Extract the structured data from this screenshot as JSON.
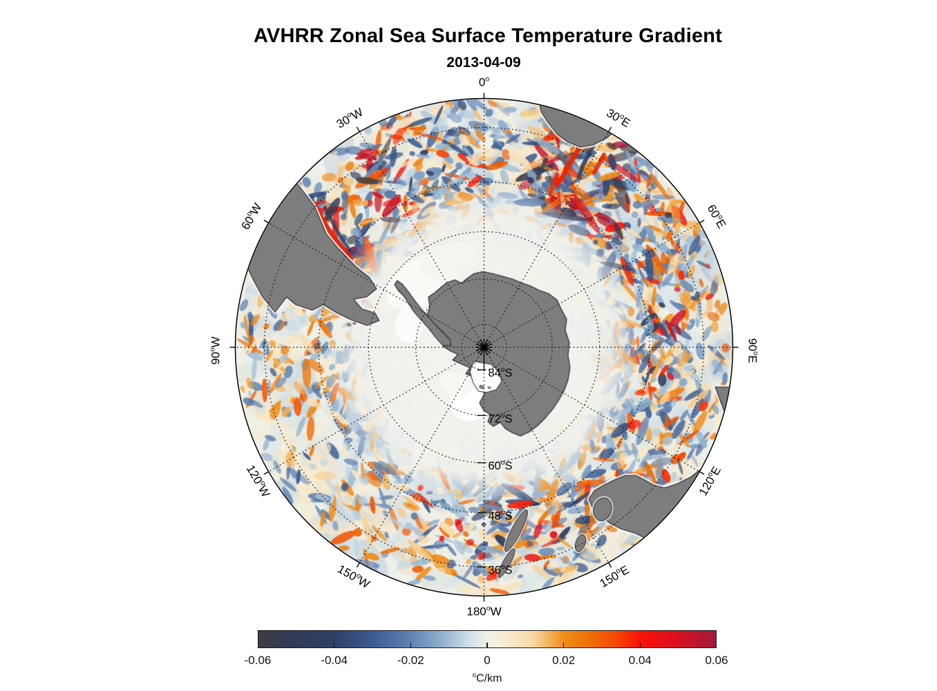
{
  "header": {
    "title": "AVHRR Zonal Sea Surface Temperature Gradient",
    "subtitle": "2013-04-09"
  },
  "chart_data": {
    "type": "heatmap",
    "projection": "south-polar-stereographic",
    "title": "AVHRR Zonal Sea Surface Temperature Gradient",
    "date": "2013-04-09",
    "variable": "zonal sea surface temperature gradient",
    "units": "°C/km",
    "colorbar": {
      "min": -0.06,
      "max": 0.06,
      "ticks": [
        -0.06,
        -0.04,
        -0.02,
        0,
        0.02,
        0.04,
        0.06
      ],
      "tick_labels": [
        "-0.06",
        "-0.04",
        "-0.02",
        "0",
        "0.02",
        "0.04",
        "0.06"
      ],
      "unit_sup": "o",
      "unit_text": "C/km"
    },
    "colormap": [
      {
        "pos": 0.0,
        "color": "#3c3c43"
      },
      {
        "pos": 0.06,
        "color": "#333a52"
      },
      {
        "pos": 0.167,
        "color": "#2d4068"
      },
      {
        "pos": 0.25,
        "color": "#3d5c90"
      },
      {
        "pos": 0.333,
        "color": "#5e82b2"
      },
      {
        "pos": 0.4,
        "color": "#8fb0cf"
      },
      {
        "pos": 0.46,
        "color": "#cfdfe8"
      },
      {
        "pos": 0.5,
        "color": "#eff1e8"
      },
      {
        "pos": 0.54,
        "color": "#f9ecd2"
      },
      {
        "pos": 0.6,
        "color": "#f8d9a6"
      },
      {
        "pos": 0.667,
        "color": "#f08f18"
      },
      {
        "pos": 0.72,
        "color": "#ec7204"
      },
      {
        "pos": 0.78,
        "color": "#f54a02"
      },
      {
        "pos": 0.833,
        "color": "#fb1405"
      },
      {
        "pos": 0.9,
        "color": "#e01019"
      },
      {
        "pos": 1.0,
        "color": "#a01a3c"
      }
    ],
    "graticule": {
      "lat_circles": [
        -36,
        -48,
        -60,
        -72,
        -84
      ],
      "lon_step_deg": 30,
      "boundary_lat": -30
    },
    "lat_labels": [
      {
        "value": "84",
        "sup": "o",
        "suffix": "S",
        "lat": -84
      },
      {
        "value": "72",
        "sup": "o",
        "suffix": "S",
        "lat": -72
      },
      {
        "value": "60",
        "sup": "o",
        "suffix": "S",
        "lat": -60
      },
      {
        "value": "48",
        "sup": "o",
        "suffix": "S",
        "lat": -48
      },
      {
        "value": "36",
        "sup": "o",
        "suffix": "S",
        "lat": -36
      }
    ],
    "lon_labels": [
      {
        "value": "0",
        "sup": "o",
        "suffix": "",
        "az": 0
      },
      {
        "value": "30",
        "sup": "o",
        "suffix": "E",
        "az": 30
      },
      {
        "value": "60",
        "sup": "o",
        "suffix": "E",
        "az": 60
      },
      {
        "value": "90",
        "sup": "o",
        "suffix": "E",
        "az": 90
      },
      {
        "value": "120",
        "sup": "o",
        "suffix": "E",
        "az": 120
      },
      {
        "value": "150",
        "sup": "o",
        "suffix": "E",
        "az": 150
      },
      {
        "value": "180",
        "sup": "o",
        "suffix": "W",
        "az": 180
      },
      {
        "value": "150",
        "sup": "o",
        "suffix": "W",
        "az": 210
      },
      {
        "value": "120",
        "sup": "o",
        "suffix": "W",
        "az": 240
      },
      {
        "value": "90",
        "sup": "o",
        "suffix": "W",
        "az": 270
      },
      {
        "value": "60",
        "sup": "o",
        "suffix": "W",
        "az": 300
      },
      {
        "value": "30",
        "sup": "o",
        "suffix": "W",
        "az": 330
      }
    ],
    "landmasses": [
      "antarctica",
      "antarctic-peninsula",
      "south-america",
      "africa",
      "australia",
      "tasmania",
      "new-zealand"
    ],
    "land_color": "#7d7d7d",
    "ocean_base_color": "#eef0e9",
    "ice_color": "#f2f3ee",
    "visible_features": [
      "strong positive and negative gradient filaments south of Africa (Agulhas region, 20-60E)",
      "strong filaments along South American shelf and Drake Passage (55-70W)",
      "eddy-scale filament band through the circumpolar ocean (35-60S)",
      "quiet pale sea-ice zone surrounding Antarctica poleward of ~62S"
    ]
  }
}
